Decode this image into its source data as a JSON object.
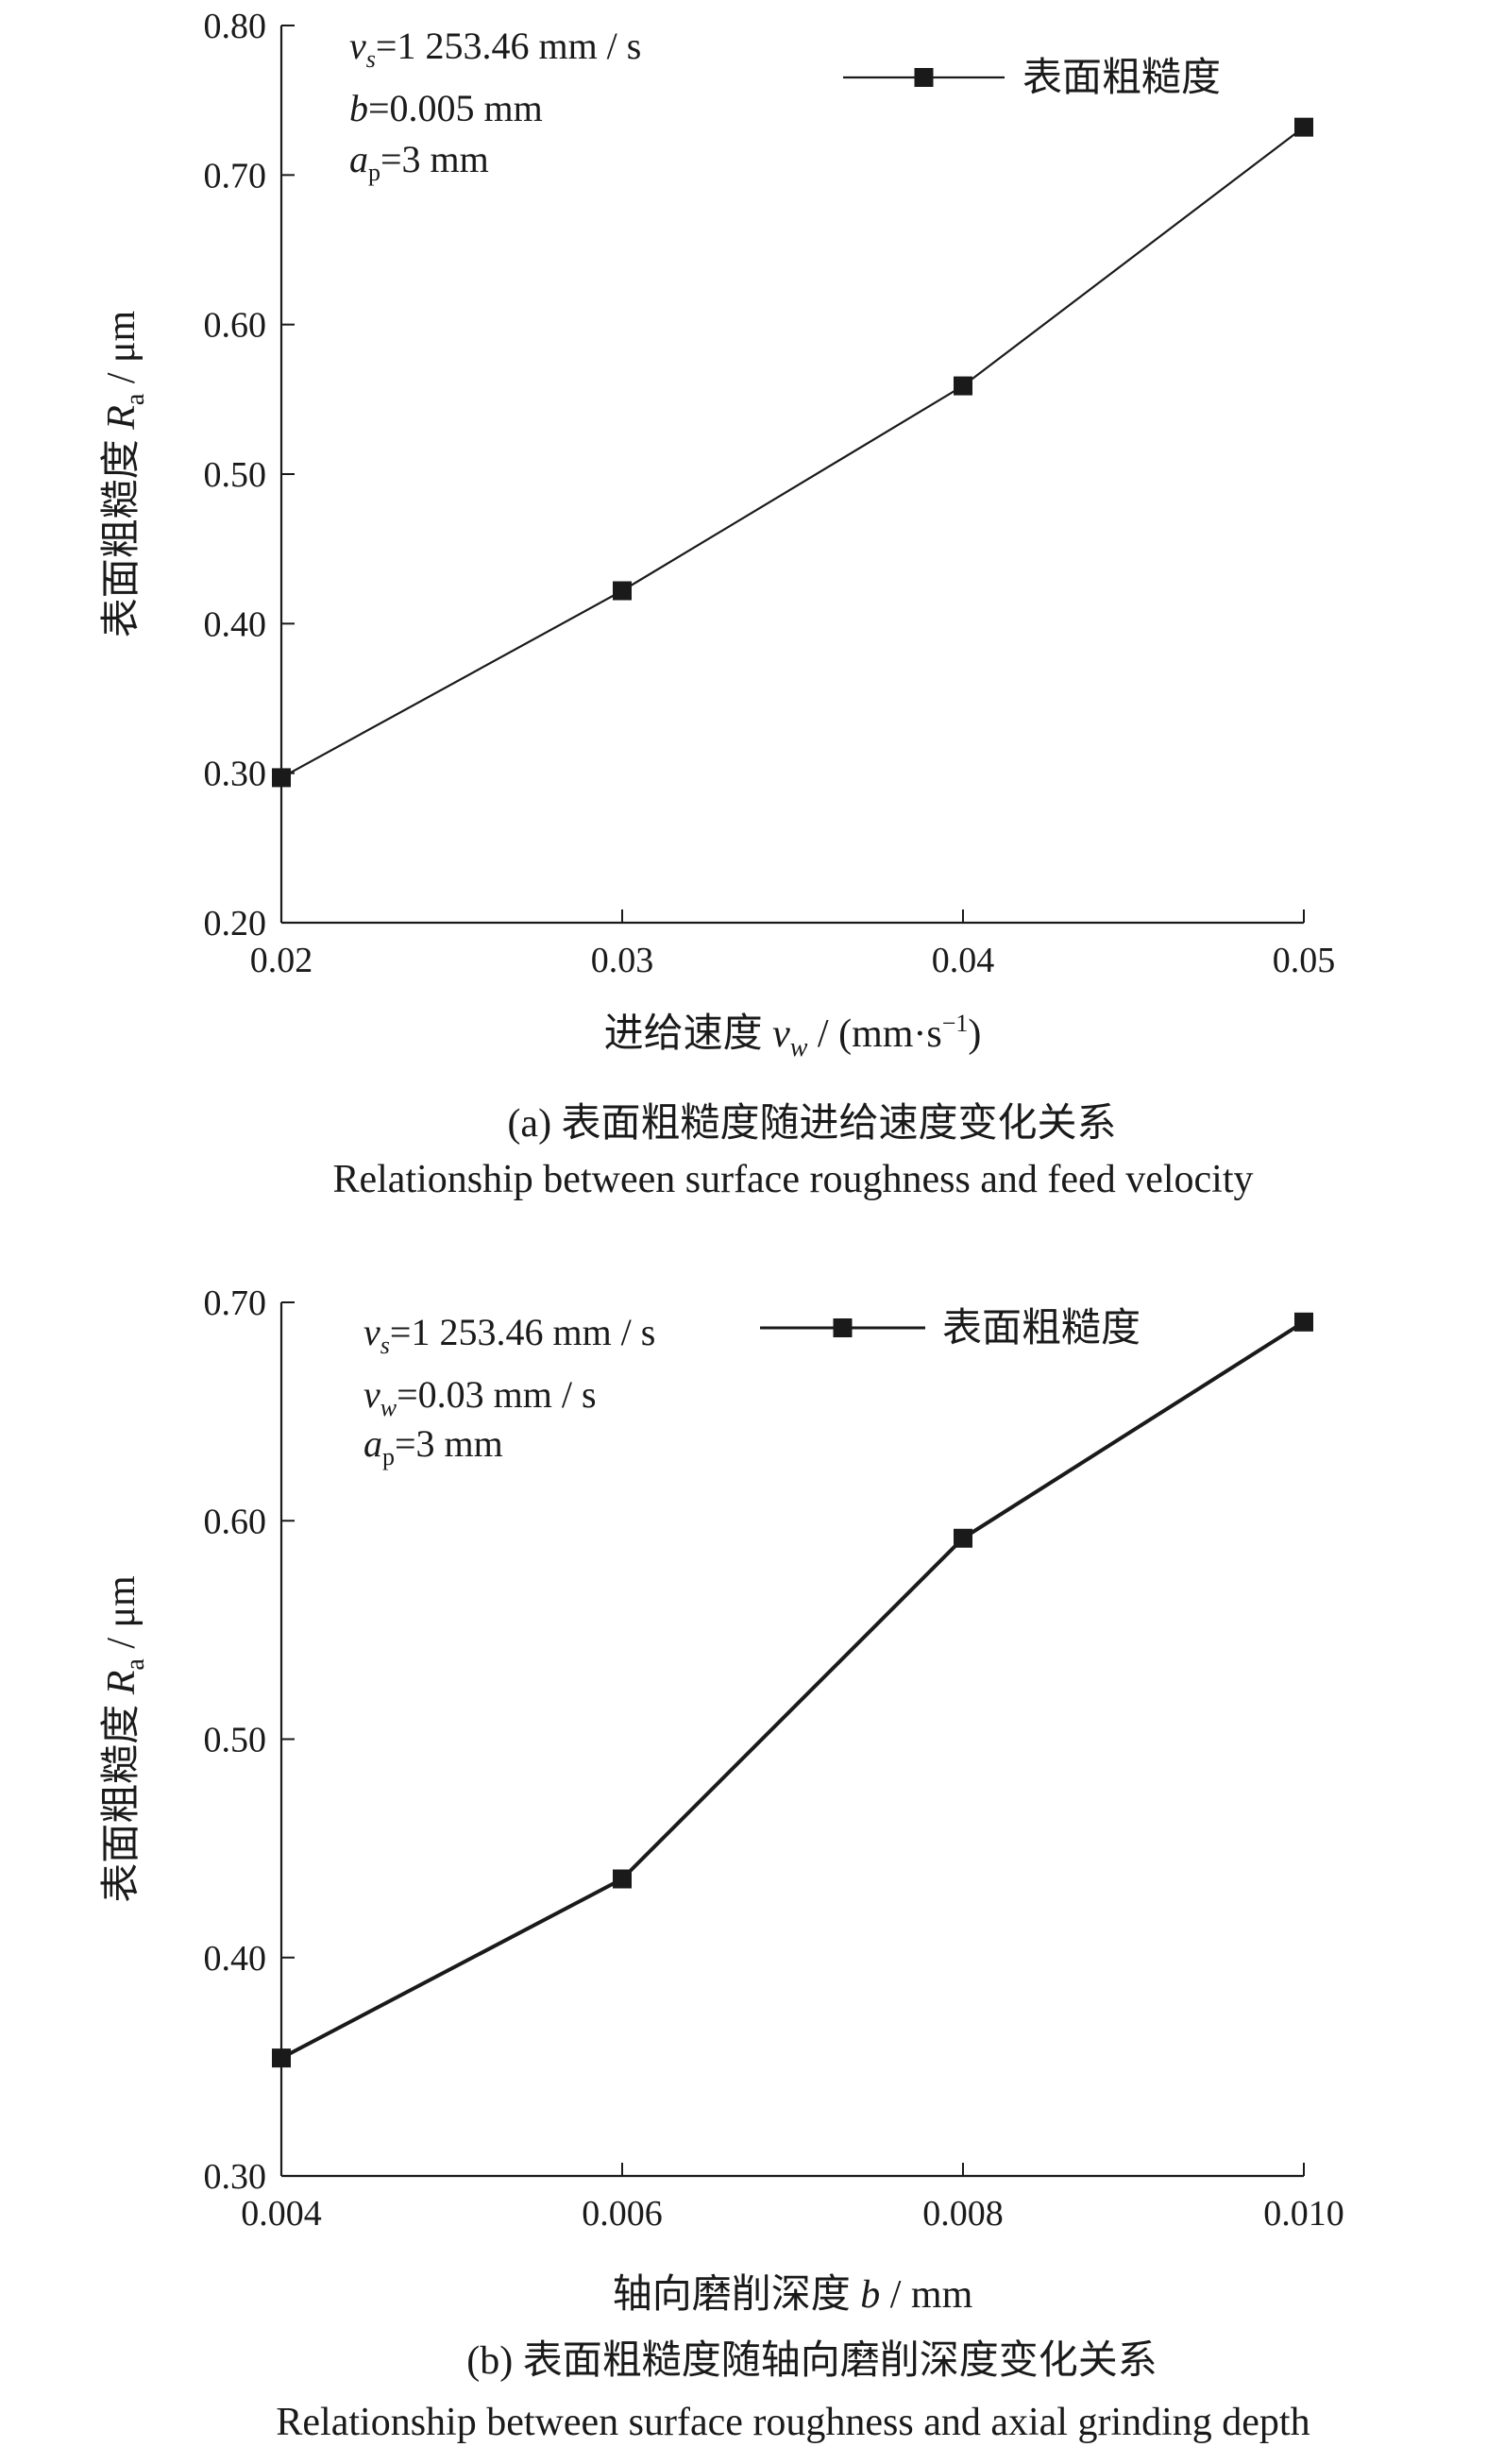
{
  "chart_data": [
    {
      "type": "line",
      "x": [
        0.02,
        0.03,
        0.04,
        0.05
      ],
      "x_tick_labels": [
        "0.02",
        "0.03",
        "0.04",
        "0.05"
      ],
      "xlim": [
        0.02,
        0.05
      ],
      "y_tick_values": [
        0.2,
        0.3,
        0.4,
        0.5,
        0.6,
        0.7,
        0.8
      ],
      "y_tick_labels": [
        "0.20",
        "0.30",
        "0.40",
        "0.50",
        "0.60",
        "0.70",
        "0.80"
      ],
      "ylim": [
        0.2,
        0.8
      ],
      "series": [
        {
          "name": "表面粗糙度",
          "values": [
            0.297,
            0.422,
            0.559,
            0.732
          ],
          "marker": "square",
          "color": "#1a1a1a"
        }
      ],
      "xlabel": {
        "text": "进给速度",
        "var": "v",
        "var_sub": "w",
        "unit": "/ (mm·s",
        "unit_sup": "−1",
        "unit_close": ")"
      },
      "ylabel": {
        "text": "表面粗糙度",
        "var": "R",
        "var_sub": "a",
        "unit": "/ μm"
      },
      "annotations": [
        {
          "var": "v",
          "sub": "s",
          "value": "=1 253.46 mm / s"
        },
        {
          "var": "b",
          "sub": "",
          "value": "=0.005 mm"
        },
        {
          "var": "a",
          "sub": "p",
          "value": "=3 mm"
        }
      ],
      "legend_position": "top-right",
      "grid": false,
      "caption_cn": "(a) 表面粗糙度随进给速度变化关系",
      "caption_en": "Relationship between surface roughness and feed velocity"
    },
    {
      "type": "line",
      "x": [
        0.004,
        0.006,
        0.008,
        0.01
      ],
      "x_tick_labels": [
        "0.004",
        "0.006",
        "0.008",
        "0.010"
      ],
      "xlim": [
        0.004,
        0.01
      ],
      "y_tick_values": [
        0.3,
        0.4,
        0.5,
        0.6,
        0.7
      ],
      "y_tick_labels": [
        "0.30",
        "0.40",
        "0.50",
        "0.60",
        "0.70"
      ],
      "ylim": [
        0.3,
        0.7
      ],
      "series": [
        {
          "name": "表面粗糙度",
          "values": [
            0.354,
            0.436,
            0.592,
            0.691
          ],
          "marker": "square",
          "color": "#1a1a1a"
        }
      ],
      "xlabel": {
        "text": "轴向磨削深度",
        "var": "b",
        "var_sub": "",
        "unit": "/ mm",
        "unit_sup": "",
        "unit_close": ""
      },
      "ylabel": {
        "text": "表面粗糙度",
        "var": "R",
        "var_sub": "a",
        "unit": "/ μm"
      },
      "annotations": [
        {
          "var": "v",
          "sub": "s",
          "value": "=1 253.46 mm / s"
        },
        {
          "var": "v",
          "sub": "w",
          "value": "=0.03 mm / s"
        },
        {
          "var": "a",
          "sub": "p",
          "value": "=3 mm"
        }
      ],
      "legend_position": "top-right",
      "grid": false,
      "caption_cn": "(b) 表面粗糙度随轴向磨削深度变化关系",
      "caption_en": "Relationship between surface roughness and axial grinding depth"
    }
  ]
}
